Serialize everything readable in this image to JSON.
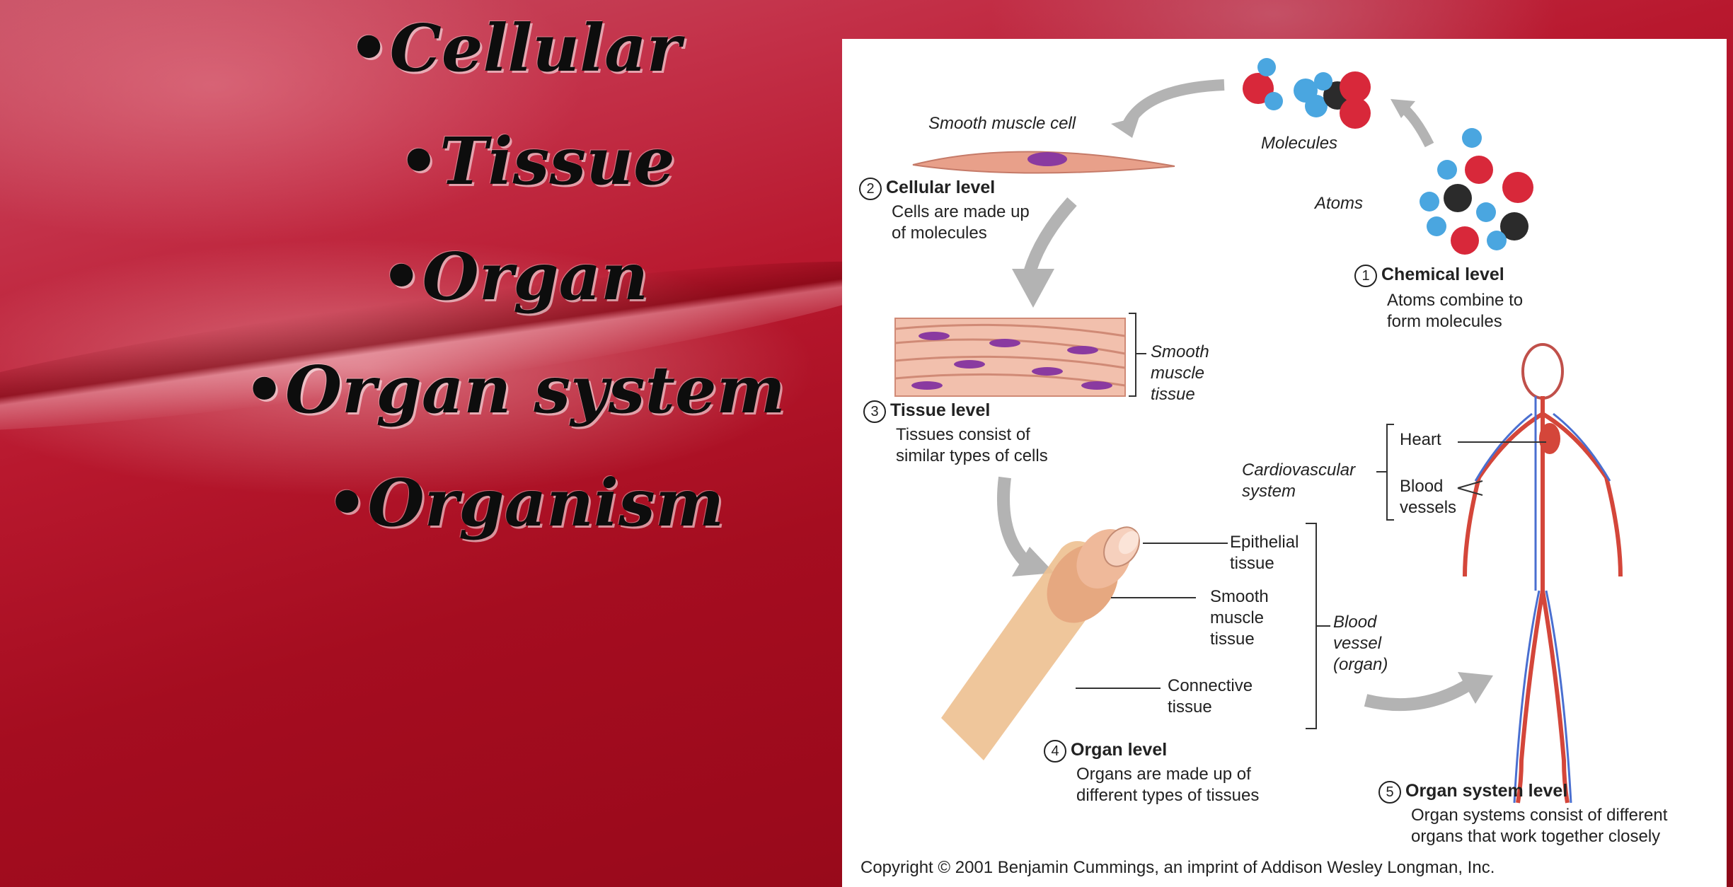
{
  "bullets": [
    "•Cellular",
    "•Tissue",
    "•Organ",
    "•Organ system",
    "•Organism"
  ],
  "figure": {
    "molecules_label": "Molecules",
    "atoms_label": "Atoms",
    "smooth_muscle_cell_label": "Smooth muscle cell",
    "levels": [
      {
        "num": "1",
        "title": "Chemical level",
        "line1": "Atoms combine to",
        "line2": "form molecules"
      },
      {
        "num": "2",
        "title": "Cellular level",
        "line1": "Cells are made up",
        "line2": "of molecules"
      },
      {
        "num": "3",
        "title": "Tissue level",
        "line1": "Tissues consist of",
        "line2": "similar types of cells"
      },
      {
        "num": "4",
        "title": "Organ level",
        "line1": "Organs are made up of",
        "line2": "different types of tissues"
      },
      {
        "num": "5",
        "title": "Organ system level",
        "line1": "Organ systems consist of different",
        "line2": "organs that work together closely"
      }
    ],
    "smooth_muscle_tissue_label": [
      "Smooth",
      "muscle",
      "tissue"
    ],
    "epithelial_label": [
      "Epithelial",
      "tissue"
    ],
    "smooth_muscle_label": [
      "Smooth",
      "muscle",
      "tissue"
    ],
    "connective_label": [
      "Connective",
      "tissue"
    ],
    "blood_vessel_label": [
      "Blood",
      "vessel",
      "(organ)"
    ],
    "cardio_label": [
      "Cardiovascular",
      "system"
    ],
    "heart_label": "Heart",
    "blood_vessels_label": [
      "Blood",
      "vessels"
    ],
    "copyright": "Copyright © 2001 Benjamin Cummings, an imprint of Addison Wesley Longman, Inc."
  },
  "colors": {
    "background": "#a80f22",
    "oxygen_atom": "#d8283a",
    "hydrogen_atom": "#4aa6e0",
    "carbon_atom": "#2b2b2b",
    "arrow": "#b3b3b3",
    "tissue": "#e8a08a",
    "nucleus": "#8a3aa0",
    "vessel": "#d9a070"
  }
}
